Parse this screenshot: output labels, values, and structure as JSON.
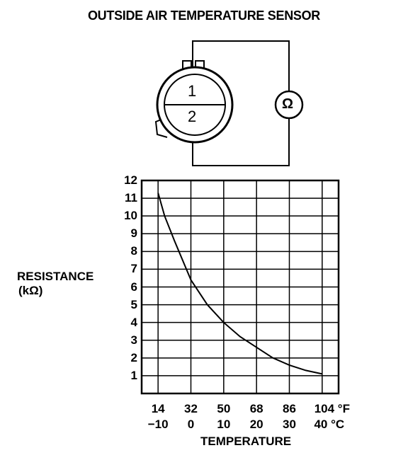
{
  "title": "OUTSIDE AIR TEMPERATURE SENSOR",
  "sensor": {
    "pin1": "1",
    "pin2": "2",
    "meter_symbol": "Ω"
  },
  "chart_data": {
    "type": "line",
    "ylabel_line1": "RESISTANCE",
    "ylabel_line2": "(kΩ)",
    "xlabel": "TEMPERATURE",
    "y_ticks": [
      "12",
      "11",
      "10",
      "9",
      "8",
      "7",
      "6",
      "5",
      "4",
      "3",
      "2",
      "1"
    ],
    "x_ticks_f": [
      "14",
      "32",
      "50",
      "68",
      "86",
      "104 °F"
    ],
    "x_ticks_c": [
      "−10",
      "0",
      "10",
      "20",
      "30",
      "40 °C"
    ],
    "xlim_c": [
      -15,
      45
    ],
    "ylim": [
      0,
      12
    ],
    "grid": true,
    "series": [
      {
        "x": [
          -10,
          -8,
          -5,
          0,
          5,
          10,
          15,
          20,
          25,
          30,
          35,
          40
        ],
        "y": [
          11.3,
          10.0,
          8.6,
          6.4,
          5.0,
          4.0,
          3.2,
          2.6,
          2.0,
          1.6,
          1.3,
          1.1
        ]
      }
    ]
  }
}
